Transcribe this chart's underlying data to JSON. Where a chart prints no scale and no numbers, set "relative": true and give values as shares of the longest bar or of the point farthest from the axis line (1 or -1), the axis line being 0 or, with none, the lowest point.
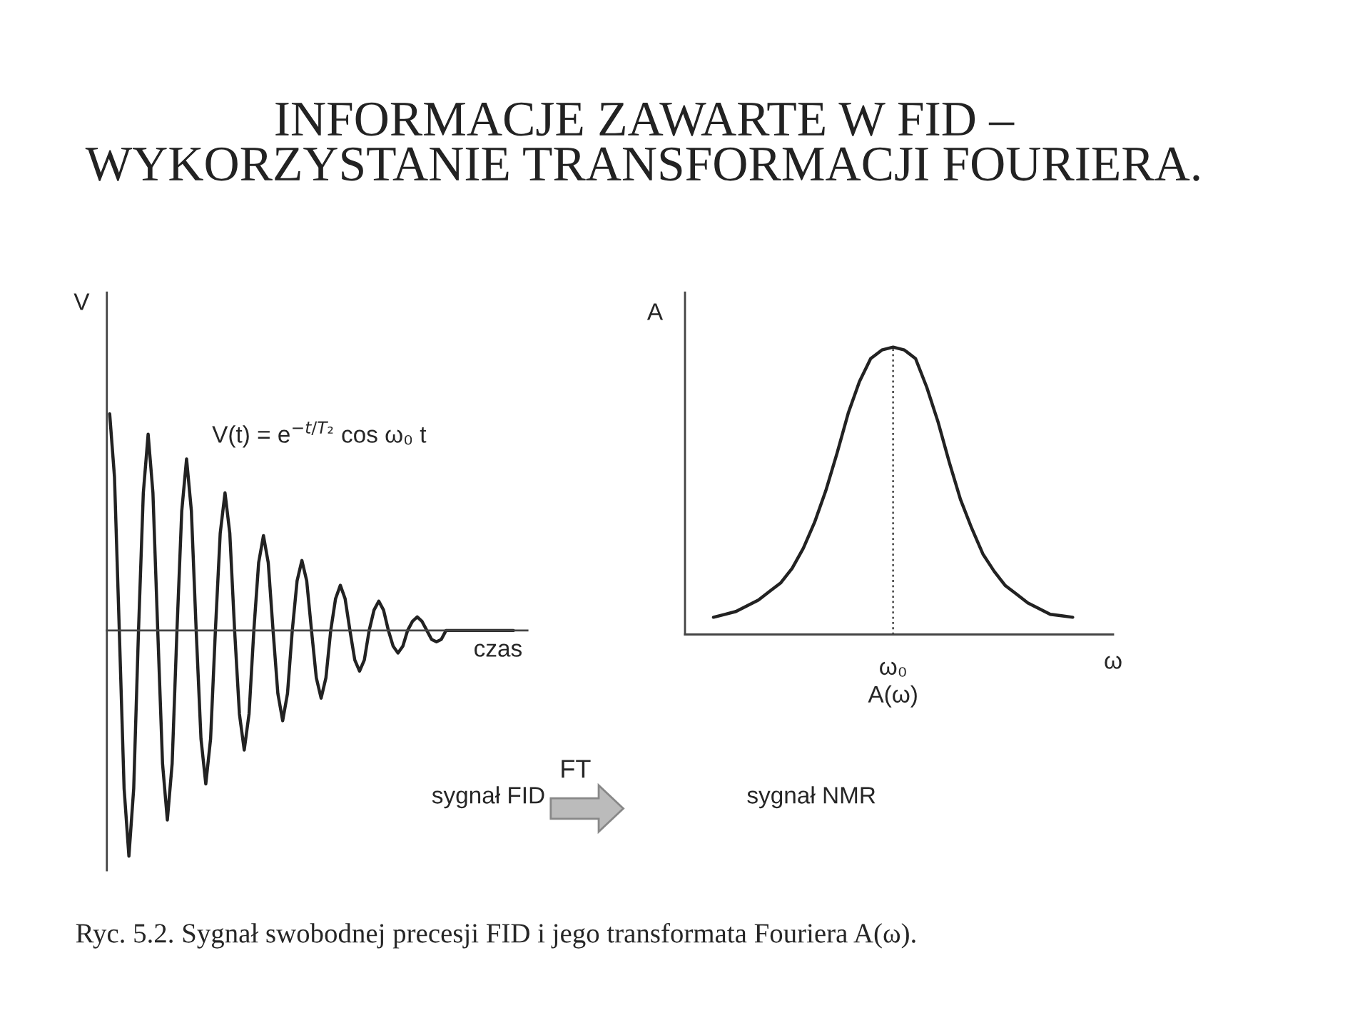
{
  "chart_data": [
    {
      "type": "line",
      "title": "INFORMACJE ZAWARTE W FID –\nWYKORZYSTANIE TRANSFORMACJI FOURIERA.",
      "xlabel": "czas",
      "ylabel": "V",
      "relative": true,
      "categories": [
        null,
        null,
        null,
        null,
        null,
        null,
        null,
        null,
        null,
        null,
        null,
        null,
        null,
        null,
        null,
        null,
        null,
        null,
        null,
        null,
        null,
        null,
        null,
        null,
        null,
        null,
        null,
        null,
        null,
        null,
        null,
        null,
        null,
        null,
        null,
        null,
        null,
        null,
        null,
        null,
        null,
        null,
        null,
        null,
        null,
        null,
        null,
        null,
        null,
        null,
        null,
        null,
        null,
        null,
        null,
        null,
        null,
        null,
        null,
        null,
        null,
        null,
        null,
        null,
        null,
        null,
        null,
        null,
        null,
        null,
        null,
        null,
        null,
        null,
        null,
        null,
        null,
        null,
        null,
        null,
        null,
        null,
        null,
        null,
        null
      ],
      "series": [
        {
          "color": "#222222",
          "values": [
            0.96,
            0.68,
            0,
            -0.7,
            -1,
            -0.7,
            0,
            0.61,
            0.87,
            0.61,
            0,
            -0.59,
            -0.84,
            -0.59,
            0,
            0.53,
            0.76,
            0.53,
            0,
            -0.48,
            -0.68,
            -0.48,
            0,
            0.43,
            0.61,
            0.43,
            0,
            -0.37,
            -0.53,
            -0.37,
            0,
            0.3,
            0.42,
            0.3,
            0,
            -0.28,
            -0.4,
            -0.28,
            0,
            0.22,
            0.31,
            0.22,
            0,
            -0.21,
            -0.3,
            -0.21,
            0,
            0.14,
            0.2,
            0.14,
            0,
            -0.13,
            -0.18,
            -0.13,
            0,
            0.09,
            0.13,
            0.09,
            0,
            -0.07,
            -0.1,
            -0.07,
            0,
            0.04,
            0.06,
            0.04,
            0,
            -0.04,
            -0.05,
            -0.04,
            0,
            0,
            0,
            0,
            0,
            0,
            0,
            0,
            0,
            0,
            0,
            0,
            0,
            0,
            0
          ]
        }
      ],
      "annotations": [
        "V(t) = e$^{−t/T₂}$ cos ω₀ t",
        "sygnał FID"
      ]
    },
    {
      "type": "line",
      "xlabel": "ω",
      "ylabel": "A",
      "relative": true,
      "categories": [
        null,
        null,
        null,
        null,
        null,
        null,
        null,
        null,
        null,
        null,
        null,
        null,
        null,
        null,
        null,
        null,
        null,
        null,
        null,
        null,
        null,
        null,
        null,
        null,
        null,
        null,
        null,
        null,
        null,
        null,
        null,
        null,
        null
      ],
      "series": [
        {
          "color": "#222222",
          "values": [
            0.06,
            0.07,
            0.08,
            0.1,
            0.12,
            0.15,
            0.18,
            0.23,
            0.3,
            0.39,
            0.5,
            0.63,
            0.77,
            0.88,
            0.96,
            0.99,
            1,
            0.99,
            0.96,
            0.86,
            0.74,
            0.6,
            0.47,
            0.37,
            0.28,
            0.22,
            0.17,
            0.14,
            0.11,
            0.09,
            0.07,
            0.065,
            0.06
          ]
        }
      ],
      "annotations": [
        "ω₀",
        "A(ω)",
        "FT",
        "sygnał NMR",
        "Ryc. 5.2. Sygnał swobodnej precesji FID i jego transformata Fouriera A(ω)."
      ]
    }
  ]
}
